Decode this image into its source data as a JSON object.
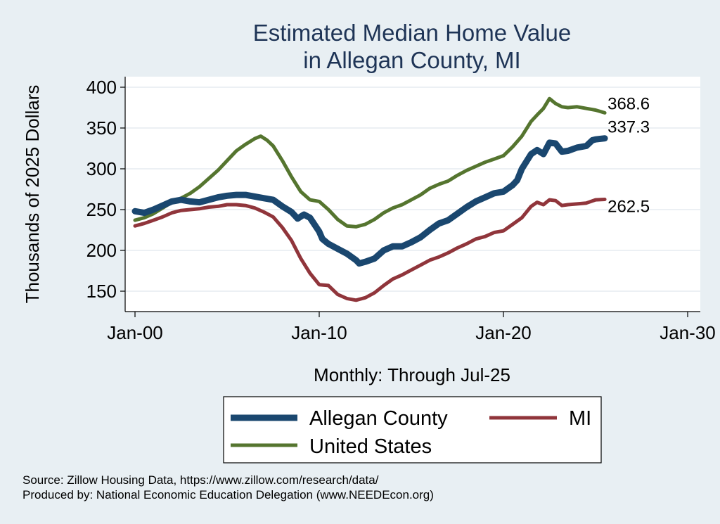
{
  "chart_data": {
    "type": "line",
    "title": [
      "Estimated Median Home Value",
      "in Allegan County, MI"
    ],
    "xlabel": "Monthly: Through Jul-25",
    "ylabel": "Thousands of 2025 Dollars",
    "xlim": [
      2000.0,
      2030.0
    ],
    "ylim": [
      140,
      410
    ],
    "x_ticks": [
      {
        "value": 2000,
        "label": "Jan-00"
      },
      {
        "value": 2010,
        "label": "Jan-10"
      },
      {
        "value": 2020,
        "label": "Jan-20"
      },
      {
        "value": 2030,
        "label": "Jan-30"
      }
    ],
    "y_ticks": [
      150,
      200,
      250,
      300,
      350,
      400
    ],
    "grid": true,
    "legend_position": "bottom",
    "series": [
      {
        "name": "Allegan County",
        "color": "#1a476f",
        "width": 9,
        "end_label": "337.3",
        "points": [
          [
            2000.0,
            248
          ],
          [
            2000.5,
            246
          ],
          [
            2001.0,
            250
          ],
          [
            2001.5,
            255
          ],
          [
            2002.0,
            260
          ],
          [
            2002.5,
            262
          ],
          [
            2003.0,
            260
          ],
          [
            2003.5,
            259
          ],
          [
            2004.0,
            262
          ],
          [
            2004.5,
            265
          ],
          [
            2005.0,
            267
          ],
          [
            2005.5,
            268
          ],
          [
            2006.0,
            268
          ],
          [
            2006.5,
            266
          ],
          [
            2007.0,
            264
          ],
          [
            2007.5,
            262
          ],
          [
            2008.0,
            254
          ],
          [
            2008.5,
            247
          ],
          [
            2008.83,
            239
          ],
          [
            2009.17,
            244
          ],
          [
            2009.5,
            240
          ],
          [
            2010.0,
            223
          ],
          [
            2010.17,
            214
          ],
          [
            2010.5,
            208
          ],
          [
            2011.0,
            202
          ],
          [
            2011.5,
            196
          ],
          [
            2012.0,
            188
          ],
          [
            2012.17,
            184
          ],
          [
            2012.5,
            186
          ],
          [
            2013.0,
            190
          ],
          [
            2013.5,
            200
          ],
          [
            2014.0,
            205
          ],
          [
            2014.5,
            205
          ],
          [
            2015.0,
            210
          ],
          [
            2015.5,
            216
          ],
          [
            2016.0,
            225
          ],
          [
            2016.5,
            233
          ],
          [
            2017.0,
            237
          ],
          [
            2017.5,
            245
          ],
          [
            2018.0,
            253
          ],
          [
            2018.5,
            260
          ],
          [
            2019.0,
            265
          ],
          [
            2019.5,
            270
          ],
          [
            2020.0,
            272
          ],
          [
            2020.5,
            280
          ],
          [
            2020.75,
            286
          ],
          [
            2021.0,
            300
          ],
          [
            2021.5,
            318
          ],
          [
            2021.83,
            323
          ],
          [
            2022.17,
            318
          ],
          [
            2022.5,
            332
          ],
          [
            2022.83,
            331
          ],
          [
            2023.17,
            321
          ],
          [
            2023.5,
            322
          ],
          [
            2024.0,
            326
          ],
          [
            2024.5,
            328
          ],
          [
            2024.83,
            335
          ],
          [
            2025.0,
            336
          ],
          [
            2025.5,
            337.3
          ]
        ]
      },
      {
        "name": "MI",
        "color": "#90353b",
        "width": 5,
        "end_label": "262.5",
        "points": [
          [
            2000.0,
            230
          ],
          [
            2000.5,
            233
          ],
          [
            2001.0,
            237
          ],
          [
            2001.5,
            241
          ],
          [
            2002.0,
            246
          ],
          [
            2002.5,
            249
          ],
          [
            2003.0,
            250
          ],
          [
            2003.5,
            251
          ],
          [
            2004.0,
            253
          ],
          [
            2004.5,
            254
          ],
          [
            2005.0,
            256
          ],
          [
            2005.5,
            256
          ],
          [
            2006.0,
            255
          ],
          [
            2006.5,
            252
          ],
          [
            2007.0,
            247
          ],
          [
            2007.5,
            241
          ],
          [
            2008.0,
            228
          ],
          [
            2008.5,
            212
          ],
          [
            2009.0,
            190
          ],
          [
            2009.5,
            172
          ],
          [
            2010.0,
            158
          ],
          [
            2010.5,
            157
          ],
          [
            2011.0,
            146
          ],
          [
            2011.5,
            141
          ],
          [
            2012.0,
            139
          ],
          [
            2012.17,
            140
          ],
          [
            2012.5,
            142
          ],
          [
            2013.0,
            148
          ],
          [
            2013.5,
            157
          ],
          [
            2014.0,
            165
          ],
          [
            2014.5,
            170
          ],
          [
            2015.0,
            176
          ],
          [
            2015.5,
            182
          ],
          [
            2016.0,
            188
          ],
          [
            2016.5,
            192
          ],
          [
            2017.0,
            197
          ],
          [
            2017.5,
            203
          ],
          [
            2018.0,
            208
          ],
          [
            2018.5,
            214
          ],
          [
            2019.0,
            217
          ],
          [
            2019.5,
            222
          ],
          [
            2020.0,
            224
          ],
          [
            2020.5,
            232
          ],
          [
            2021.0,
            240
          ],
          [
            2021.5,
            254
          ],
          [
            2021.83,
            259
          ],
          [
            2022.17,
            256
          ],
          [
            2022.5,
            262
          ],
          [
            2022.83,
            261
          ],
          [
            2023.17,
            255
          ],
          [
            2023.5,
            256
          ],
          [
            2024.0,
            257
          ],
          [
            2024.5,
            258
          ],
          [
            2025.0,
            262
          ],
          [
            2025.5,
            262.5
          ]
        ]
      },
      {
        "name": "United States",
        "color": "#55752f",
        "width": 5,
        "end_label": "368.6",
        "points": [
          [
            2000.0,
            237
          ],
          [
            2000.5,
            240
          ],
          [
            2001.0,
            245
          ],
          [
            2001.5,
            252
          ],
          [
            2002.0,
            259
          ],
          [
            2002.5,
            264
          ],
          [
            2003.0,
            270
          ],
          [
            2003.5,
            278
          ],
          [
            2004.0,
            288
          ],
          [
            2004.5,
            298
          ],
          [
            2005.0,
            310
          ],
          [
            2005.5,
            322
          ],
          [
            2006.0,
            330
          ],
          [
            2006.5,
            337
          ],
          [
            2006.83,
            340
          ],
          [
            2007.17,
            335
          ],
          [
            2007.5,
            328
          ],
          [
            2008.0,
            310
          ],
          [
            2008.5,
            290
          ],
          [
            2009.0,
            272
          ],
          [
            2009.5,
            262
          ],
          [
            2010.0,
            260
          ],
          [
            2010.5,
            250
          ],
          [
            2011.0,
            238
          ],
          [
            2011.5,
            230
          ],
          [
            2012.0,
            229
          ],
          [
            2012.5,
            232
          ],
          [
            2013.0,
            238
          ],
          [
            2013.5,
            246
          ],
          [
            2014.0,
            252
          ],
          [
            2014.5,
            256
          ],
          [
            2015.0,
            262
          ],
          [
            2015.5,
            268
          ],
          [
            2016.0,
            276
          ],
          [
            2016.5,
            281
          ],
          [
            2017.0,
            285
          ],
          [
            2017.5,
            292
          ],
          [
            2018.0,
            298
          ],
          [
            2018.5,
            303
          ],
          [
            2019.0,
            308
          ],
          [
            2019.5,
            312
          ],
          [
            2020.0,
            316
          ],
          [
            2020.5,
            327
          ],
          [
            2021.0,
            340
          ],
          [
            2021.5,
            358
          ],
          [
            2021.83,
            366
          ],
          [
            2022.17,
            374
          ],
          [
            2022.5,
            386
          ],
          [
            2022.83,
            380
          ],
          [
            2023.17,
            376
          ],
          [
            2023.5,
            375
          ],
          [
            2024.0,
            376
          ],
          [
            2024.5,
            374
          ],
          [
            2025.0,
            372
          ],
          [
            2025.5,
            368.6
          ]
        ]
      }
    ]
  },
  "legend": {
    "items": [
      {
        "label": "Allegan County",
        "color": "#1a476f",
        "width": 9
      },
      {
        "label": "MI",
        "color": "#90353b",
        "width": 5
      },
      {
        "label": "United States",
        "color": "#55752f",
        "width": 5
      }
    ]
  },
  "source": {
    "line1": "Source: Zillow Housing Data, https://www.zillow.com/research/data/",
    "line2": "Produced by: National Economic Education Delegation (www.NEEDEcon.org)"
  }
}
